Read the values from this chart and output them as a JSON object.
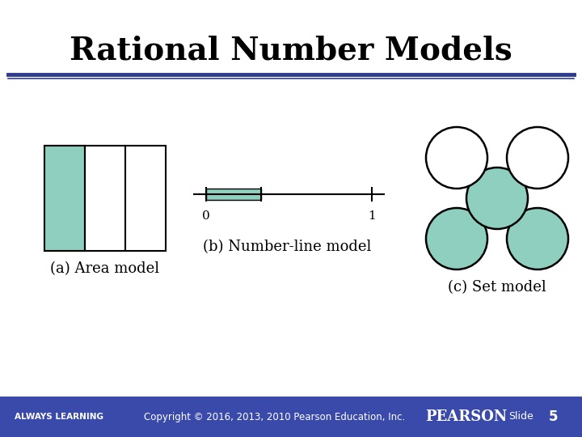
{
  "title": "Rational Number Models",
  "title_fontsize": 28,
  "title_fontweight": "bold",
  "bg_color": "#ffffff",
  "header_line_color": "#2e3b8e",
  "footer_bg_color": "#3a4aaa",
  "footer_text_color": "#ffffff",
  "teal_fill": "#8ecfbf",
  "label_fontsize": 13,
  "area_label": "(a) Area model",
  "numline_label": "(b) Number-line model",
  "set_label": "(c) Set model",
  "footer_left": "ALWAYS LEARNING",
  "footer_center": "Copyright © 2016, 2013, 2010 Pearson Education, Inc.",
  "footer_pearson": "PEARSON",
  "footer_slide": "Slide",
  "footer_num": "5"
}
